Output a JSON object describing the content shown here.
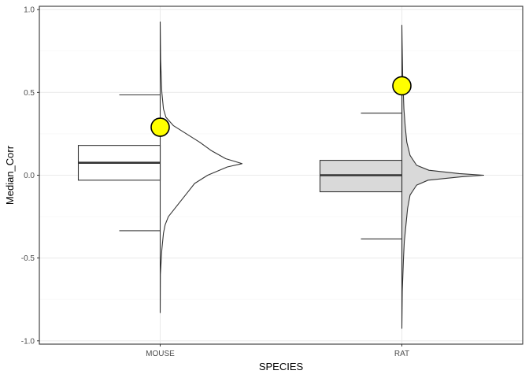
{
  "chart_data": {
    "type": "half-violin-boxplot",
    "xlabel": "SPECIES",
    "ylabel": "Median_Corr",
    "ylim": [
      -1.02,
      1.02
    ],
    "yticks": [
      -1.0,
      -0.5,
      0.0,
      0.5,
      1.0
    ],
    "ytick_labels": [
      "-1.0",
      "-0.5",
      "0.0",
      "0.5",
      "1.0"
    ],
    "grid": true,
    "categories": [
      "MOUSE",
      "RAT"
    ],
    "groups": [
      {
        "name": "MOUSE",
        "fill": "#ffffff",
        "box": {
          "whisker_low": -0.335,
          "q1": -0.03,
          "median": 0.075,
          "q3": 0.18,
          "whisker_high": 0.485
        },
        "violin": {
          "y_min": -0.83,
          "y_max": 0.925,
          "density": [
            [
              -0.83,
              0.0
            ],
            [
              -0.6,
              0.002
            ],
            [
              -0.45,
              0.02
            ],
            [
              -0.35,
              0.04
            ],
            [
              -0.3,
              0.06
            ],
            [
              -0.25,
              0.1
            ],
            [
              -0.2,
              0.18
            ],
            [
              -0.15,
              0.26
            ],
            [
              -0.1,
              0.34
            ],
            [
              -0.05,
              0.42
            ],
            [
              0.0,
              0.58
            ],
            [
              0.05,
              0.82
            ],
            [
              0.07,
              1.0
            ],
            [
              0.1,
              0.8
            ],
            [
              0.15,
              0.62
            ],
            [
              0.2,
              0.48
            ],
            [
              0.25,
              0.32
            ],
            [
              0.3,
              0.16
            ],
            [
              0.35,
              0.07
            ],
            [
              0.4,
              0.04
            ],
            [
              0.5,
              0.02
            ],
            [
              0.7,
              0.005
            ],
            [
              0.925,
              0.0
            ]
          ]
        },
        "highlight_point": 0.29
      },
      {
        "name": "RAT",
        "fill": "#d9d9d9",
        "box": {
          "whisker_low": -0.385,
          "q1": -0.1,
          "median": 0.0,
          "q3": 0.09,
          "whisker_high": 0.375
        },
        "violin": {
          "y_min": -0.925,
          "y_max": 0.905,
          "density": [
            [
              -0.925,
              0.0
            ],
            [
              -0.7,
              0.005
            ],
            [
              -0.5,
              0.02
            ],
            [
              -0.4,
              0.03
            ],
            [
              -0.3,
              0.05
            ],
            [
              -0.2,
              0.07
            ],
            [
              -0.12,
              0.1
            ],
            [
              -0.06,
              0.18
            ],
            [
              -0.03,
              0.32
            ],
            [
              -0.01,
              0.72
            ],
            [
              0.0,
              1.0
            ],
            [
              0.01,
              0.7
            ],
            [
              0.03,
              0.33
            ],
            [
              0.06,
              0.18
            ],
            [
              0.12,
              0.1
            ],
            [
              0.2,
              0.06
            ],
            [
              0.3,
              0.04
            ],
            [
              0.4,
              0.025
            ],
            [
              0.6,
              0.01
            ],
            [
              0.8,
              0.003
            ],
            [
              0.905,
              0.0
            ]
          ]
        },
        "highlight_point": 0.54
      }
    ],
    "colors": {
      "highlight_fill": "#ffff00",
      "panel_border": "#333333",
      "grid_major": "#ebebeb",
      "grid_minor": "#f5f5f5",
      "line": "#333333"
    }
  }
}
